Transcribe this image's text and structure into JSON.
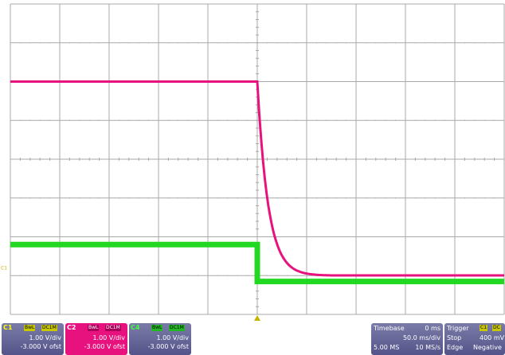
{
  "screen": {
    "background": "#ffffff",
    "grid_color": "#a9a9a9",
    "divisions": {
      "horizontal": 10,
      "vertical": 8
    }
  },
  "traces": [
    {
      "channel": "C2",
      "color": "#e8127e",
      "high_div": 6.0,
      "low_div": 1.0,
      "transition_div": 5.0,
      "decay_div": 0.22
    },
    {
      "channel": "C4",
      "color": "#22d822",
      "high_div": 1.8,
      "low_div": 0.85,
      "transition_div": 5.0
    }
  ],
  "markers": {
    "trigger_color": "#c8b400",
    "c1_ground_color": "#c8b400",
    "c1_ground_label": "C1",
    "c1_ground_div": 1.2
  },
  "channels": [
    {
      "id": "c1",
      "name": "C1",
      "bwl": "BwL",
      "coupling": "DC1M",
      "vdiv": "1.00 V/div",
      "offset": "-3.000 V ofst",
      "color": "#c8c800"
    },
    {
      "id": "c2",
      "name": "C2",
      "bwl": "BwL",
      "coupling": "DC1M",
      "vdiv": "1.00 V/div",
      "offset": "-3.000 V ofst",
      "color": "#e8127e"
    },
    {
      "id": "c4",
      "name": "C4",
      "bwl": "BwL",
      "coupling": "DC1M",
      "vdiv": "1.00 V/div",
      "offset": "-3.000 V ofst",
      "color": "#22d822"
    }
  ],
  "timebase": {
    "label": "Timebase",
    "delay": "0 ms",
    "tdiv": "50.0 ms/div",
    "samples": "5.00 MS",
    "rate": "10 MS/s"
  },
  "trigger": {
    "label": "Trigger",
    "source": "C1",
    "coupling": "DC",
    "mode": "Stop",
    "level": "400 mV",
    "type": "Edge",
    "slope": "Negative"
  }
}
